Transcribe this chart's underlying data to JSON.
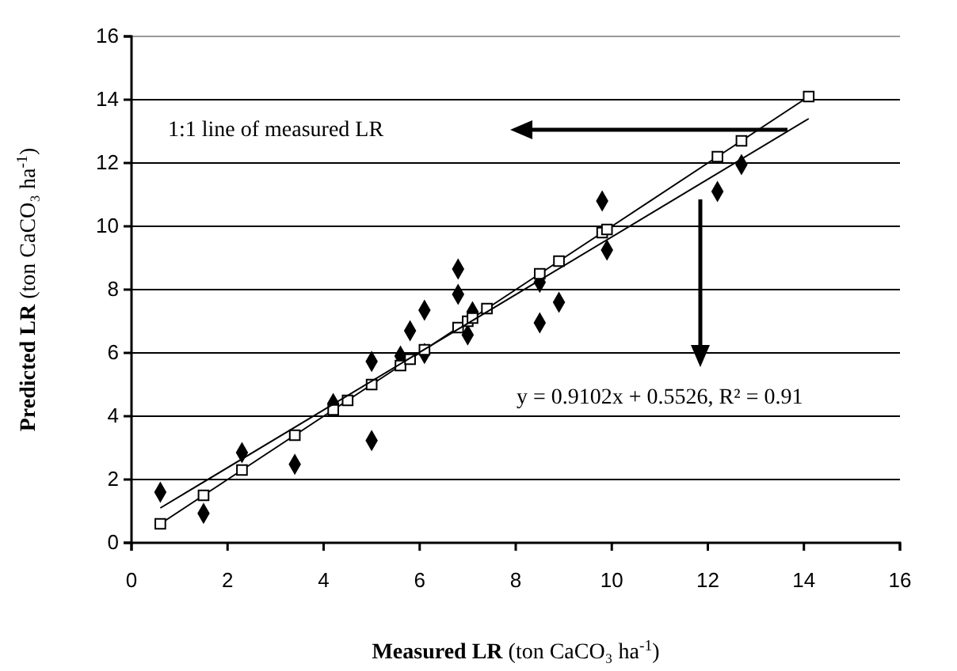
{
  "chart_data": {
    "type": "scatter",
    "xlabel": "Measured LR (ton CaCO₃ ha$^{-1}$)",
    "ylabel": "Predicted LR (ton CaCO₃ ha$^{-1}$)",
    "xlim": [
      0,
      16
    ],
    "ylim": [
      0,
      16
    ],
    "xticks": [
      0,
      2,
      4,
      6,
      8,
      10,
      12,
      14,
      16
    ],
    "yticks": [
      0,
      2,
      4,
      6,
      8,
      10,
      12,
      14,
      16
    ],
    "grid": "y",
    "series": [
      {
        "marker": "diamond",
        "color": "#000000",
        "x": [
          0.6,
          1.5,
          2.3,
          3.4,
          4.2,
          5.0,
          5.0,
          5.6,
          5.8,
          6.1,
          6.1,
          6.8,
          6.8,
          7.0,
          7.1,
          8.5,
          8.5,
          8.9,
          9.8,
          9.9,
          12.2,
          12.7
        ],
        "values": [
          1.6,
          0.93,
          2.85,
          2.48,
          4.4,
          5.73,
          3.23,
          5.9,
          6.7,
          7.35,
          5.98,
          7.85,
          8.65,
          6.57,
          7.3,
          8.23,
          6.95,
          7.6,
          10.8,
          9.25,
          11.1,
          11.95
        ]
      },
      {
        "type": "line",
        "marker": "square",
        "color": "#000000",
        "x": [
          0.6,
          1.5,
          2.3,
          3.4,
          4.2,
          4.5,
          5.0,
          5.6,
          5.8,
          6.1,
          6.8,
          7.0,
          7.1,
          7.4,
          8.5,
          8.9,
          9.8,
          9.9,
          12.2,
          12.7,
          14.1
        ],
        "values": [
          0.6,
          1.5,
          2.3,
          3.4,
          4.2,
          4.5,
          5.0,
          5.6,
          5.8,
          6.1,
          6.8,
          7.0,
          7.1,
          7.4,
          8.5,
          8.9,
          9.8,
          9.9,
          12.2,
          12.7,
          14.1
        ]
      },
      {
        "type": "line",
        "marker": "none",
        "color": "#000000",
        "x": [
          0.6,
          14.1
        ],
        "values": [
          1.1,
          13.4
        ]
      }
    ],
    "annotations": [
      "1:1 line of measured LR",
      "y = 0.9102x + 0.5526, R² = 0.91"
    ]
  }
}
